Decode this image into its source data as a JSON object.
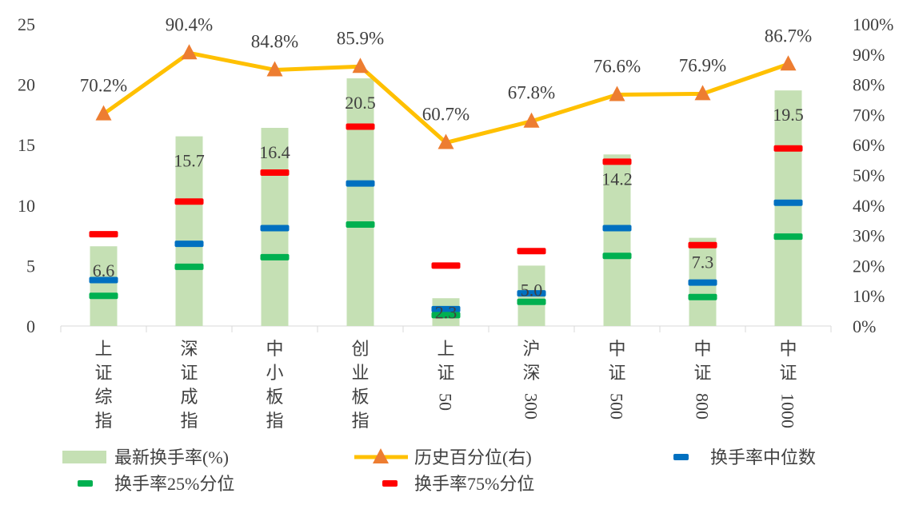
{
  "chart_data": {
    "type": "bar",
    "categories": [
      "上证综指",
      "深证成指",
      "中小板指",
      "创业板指",
      "上证50",
      "沪深300",
      "中证500",
      "中证800",
      "中证1000"
    ],
    "series": [
      {
        "name": "最新换手率(%)",
        "kind": "bar",
        "axis": "left",
        "color": "#c5e0b4",
        "values": [
          6.6,
          15.7,
          16.4,
          20.5,
          2.3,
          5.0,
          14.2,
          7.3,
          19.5
        ],
        "labels": [
          "6.6",
          "15.7",
          "16.4",
          "20.5",
          "2.3",
          "5.0",
          "14.2",
          "7.3",
          "19.5"
        ]
      },
      {
        "name": "历史百分位(右)",
        "kind": "line",
        "axis": "right",
        "color": "#ffc000",
        "marker_color": "#ed7d31",
        "values": [
          70.2,
          90.4,
          84.8,
          85.9,
          60.7,
          67.8,
          76.6,
          76.9,
          86.7
        ],
        "labels": [
          "70.2%",
          "90.4%",
          "84.8%",
          "85.9%",
          "60.7%",
          "67.8%",
          "76.6%",
          "76.9%",
          "86.7%"
        ]
      },
      {
        "name": "换手率中位数",
        "kind": "marker",
        "axis": "left",
        "color": "#0070c0",
        "values": [
          3.8,
          6.8,
          8.1,
          11.8,
          1.4,
          2.7,
          8.1,
          3.6,
          10.2
        ]
      },
      {
        "name": "换手率25%分位",
        "kind": "marker",
        "axis": "left",
        "color": "#00b050",
        "values": [
          2.5,
          4.9,
          5.7,
          8.4,
          0.9,
          2.0,
          5.8,
          2.4,
          7.4
        ]
      },
      {
        "name": "换手率75%分位",
        "kind": "marker",
        "axis": "left",
        "color": "#ff0000",
        "values": [
          7.6,
          10.3,
          12.7,
          16.5,
          5.0,
          6.2,
          13.6,
          6.7,
          14.7
        ]
      }
    ],
    "left_axis": {
      "ylim": [
        0,
        25
      ],
      "ticks": [
        "0",
        "5",
        "10",
        "15",
        "20",
        "25"
      ]
    },
    "right_axis": {
      "ylim": [
        0,
        100
      ],
      "ticks": [
        "0%",
        "10%",
        "20%",
        "30%",
        "40%",
        "50%",
        "60%",
        "70%",
        "80%",
        "90%",
        "100%"
      ]
    },
    "grid": false,
    "legend_position": "bottom"
  }
}
